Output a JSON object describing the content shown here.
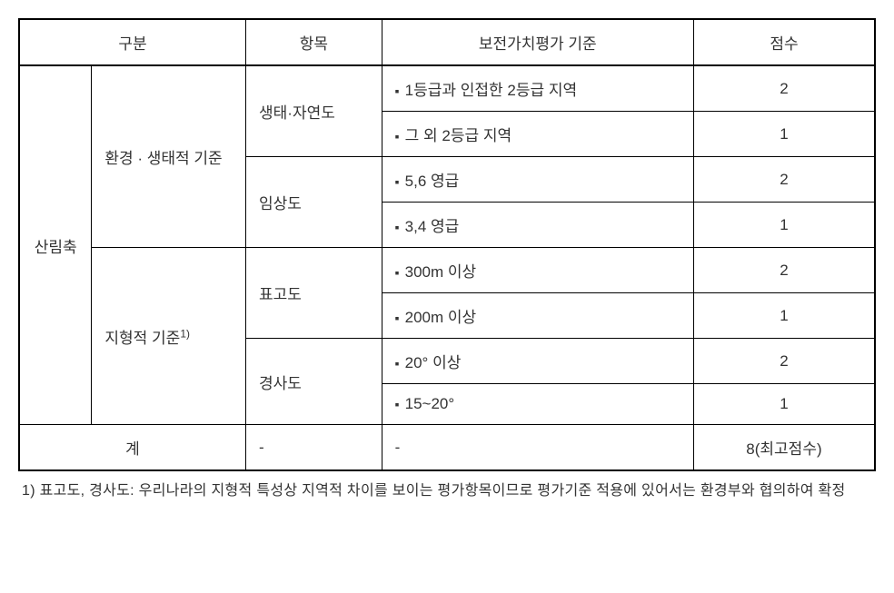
{
  "headers": {
    "gubun": "구분",
    "item": "항목",
    "criteria": "보전가치평가 기준",
    "score": "점수"
  },
  "axis_label": "산림축",
  "groups": [
    {
      "name": "환경 · 생태적 기준",
      "items": [
        {
          "name": "생태·자연도",
          "rows": [
            {
              "criteria": "1등급과 인접한 2등급 지역",
              "score": "2"
            },
            {
              "criteria": "그 외 2등급 지역",
              "score": "1"
            }
          ]
        },
        {
          "name": "임상도",
          "rows": [
            {
              "criteria": "5,6 영급",
              "score": "2"
            },
            {
              "criteria": "3,4 영급",
              "score": "1"
            }
          ]
        }
      ]
    },
    {
      "name": "지형적 기준",
      "footnote_mark": "1)",
      "items": [
        {
          "name": "표고도",
          "rows": [
            {
              "criteria": "300m 이상",
              "score": "2"
            },
            {
              "criteria": "200m 이상",
              "score": "1"
            }
          ]
        },
        {
          "name": "경사도",
          "rows": [
            {
              "criteria": "20°  이상",
              "score": "2"
            },
            {
              "criteria": "15~20°",
              "score": "1"
            }
          ]
        }
      ]
    }
  ],
  "total_row": {
    "label": "계",
    "item": "-",
    "criteria": "-",
    "score": "8(최고점수)"
  },
  "footnote": "1) 표고도, 경사도: 우리나라의 지형적 특성상 지역적 차이를 보이는 평가항목이므로 평가기준 적용에 있어서는 환경부와 협의하여 확정"
}
